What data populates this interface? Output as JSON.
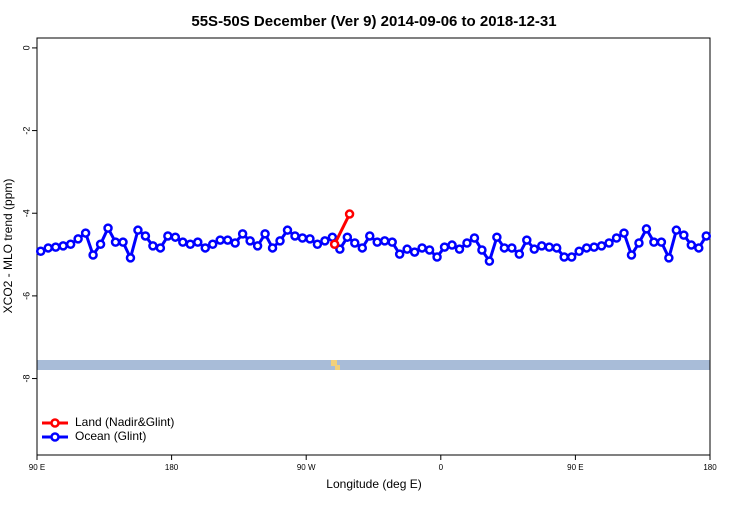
{
  "chart_data": {
    "type": "line",
    "title": "55S-50S December (Ver 9)   2014-09-06 to 2018-12-31",
    "x_label": "Longitude (deg E)",
    "y_label": "XCO2 - MLO trend (ppm)",
    "xlim": [
      90,
      540
    ],
    "xticks": [
      {
        "value": 90,
        "label": "90 E"
      },
      {
        "value": 180,
        "label": "180"
      },
      {
        "value": 270,
        "label": "90 W"
      },
      {
        "value": 360,
        "label": "0"
      },
      {
        "value": 450,
        "label": "90 E"
      },
      {
        "value": 540,
        "label": "180"
      }
    ],
    "ylim": [
      -9.85,
      0.24
    ],
    "yticks": [
      0,
      -2,
      -4,
      -6,
      -8
    ],
    "legend": "bottom-left",
    "series": [
      {
        "name": "Land (Nadir&Glint)",
        "color": "#ff0000",
        "x": [
          289,
          299
        ],
        "values": [
          -4.75,
          -4.02
        ]
      },
      {
        "name": "Ocean (Glint)",
        "color": "#0000ff",
        "x": [
          92.5,
          97.5,
          102.5,
          107.5,
          112.5,
          117.5,
          122.5,
          127.5,
          132.5,
          137.5,
          142.5,
          147.5,
          152.5,
          157.5,
          162.5,
          167.5,
          172.5,
          177.5,
          182.5,
          187.5,
          192.5,
          197.5,
          202.5,
          207.5,
          212.5,
          217.5,
          222.5,
          227.5,
          232.5,
          237.5,
          242.5,
          247.5,
          252.5,
          257.5,
          262.5,
          267.5,
          272.5,
          277.5,
          282.5,
          287.5,
          292.5,
          297.5,
          302.5,
          307.5,
          312.5,
          317.5,
          322.5,
          327.5,
          332.5,
          337.5,
          342.5,
          347.5,
          352.5,
          357.5,
          362.5,
          367.5,
          372.5,
          377.5,
          382.5,
          387.5,
          392.5,
          397.5,
          402.5,
          407.5,
          412.5,
          417.5,
          422.5,
          427.5,
          432.5,
          437.5,
          442.5,
          447.5,
          452.5,
          457.5,
          462.5,
          467.5,
          472.5,
          477.5,
          482.5,
          487.5,
          492.5,
          497.5,
          502.5,
          507.5,
          512.5,
          517.5,
          522.5,
          527.5,
          532.5,
          537.5
        ],
        "values": [
          -4.92,
          -4.84,
          -4.82,
          -4.79,
          -4.75,
          -4.62,
          -4.48,
          -5.01,
          -4.75,
          -4.36,
          -4.7,
          -4.7,
          -5.08,
          -4.41,
          -4.55,
          -4.79,
          -4.84,
          -4.55,
          -4.58,
          -4.7,
          -4.75,
          -4.7,
          -4.84,
          -4.75,
          -4.65,
          -4.65,
          -4.72,
          -4.5,
          -4.67,
          -4.79,
          -4.5,
          -4.84,
          -4.67,
          -4.41,
          -4.55,
          -4.6,
          -4.62,
          -4.75,
          -4.67,
          -4.58,
          -4.87,
          -4.58,
          -4.72,
          -4.84,
          -4.55,
          -4.7,
          -4.67,
          -4.7,
          -4.99,
          -4.87,
          -4.94,
          -4.84,
          -4.89,
          -5.06,
          -4.82,
          -4.77,
          -4.87,
          -4.72,
          -4.6,
          -4.89,
          -5.16,
          -4.58,
          -4.84,
          -4.84,
          -4.99,
          -4.65,
          -4.87,
          -4.79,
          -4.82,
          -4.84,
          -5.06,
          -5.06,
          -4.92,
          -4.84,
          -4.82,
          -4.79,
          -4.72,
          -4.6,
          -4.48,
          -5.01,
          -4.72,
          -4.38,
          -4.7,
          -4.7,
          -5.08,
          -4.41,
          -4.53,
          -4.77,
          -4.84,
          -4.55
        ]
      }
    ]
  }
}
